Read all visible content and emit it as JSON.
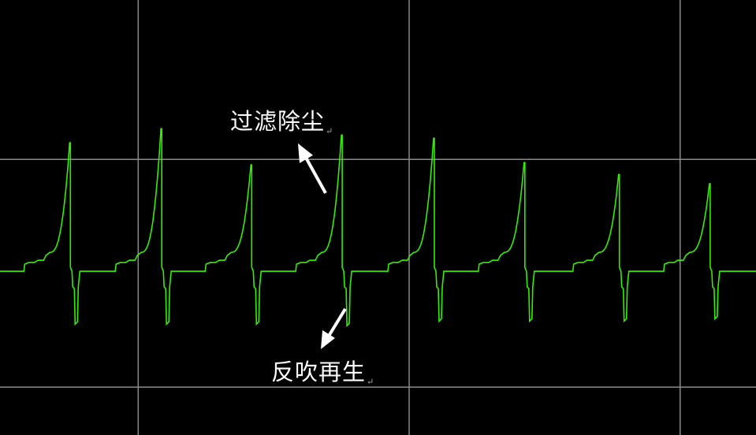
{
  "chart_data": {
    "type": "line",
    "title": "",
    "xlabel": "",
    "ylabel": "",
    "grid": true,
    "background": "#000000",
    "grid_color": "#8a8a8a",
    "line_color": "#33ee00",
    "xlim": [
      0.49,
      3.28
    ],
    "ylim": [
      -0.21,
      1.7
    ],
    "x_gridlines": [
      1,
      2,
      3
    ],
    "y_gridlines": [
      0,
      1
    ],
    "baseline": 0.509,
    "series": [
      {
        "pulses": [
          {
            "x": 0.747,
            "peak": 1.073,
            "trough": 0.277
          },
          {
            "x": 1.084,
            "peak": 1.135,
            "trough": 0.277
          },
          {
            "x": 1.416,
            "peak": 0.976,
            "trough": 0.277
          },
          {
            "x": 1.75,
            "peak": 1.107,
            "trough": 0.27
          },
          {
            "x": 2.09,
            "peak": 1.093,
            "trough": 0.29
          },
          {
            "x": 2.424,
            "peak": 0.986,
            "trough": 0.29
          },
          {
            "x": 2.773,
            "peak": 0.934,
            "trough": 0.29
          },
          {
            "x": 3.108,
            "peak": 0.893,
            "trough": 0.3
          }
        ]
      }
    ],
    "annotations": [
      {
        "text": "过滤除尘",
        "mark": "↵",
        "arrow": "up-left"
      },
      {
        "text": "反吹再生",
        "mark": "↵",
        "arrow": "down-left"
      }
    ]
  }
}
